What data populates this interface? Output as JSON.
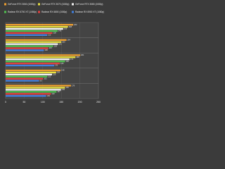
{
  "chart_data": {
    "type": "bar",
    "orientation": "horizontal",
    "categories": [
      null,
      null,
      null,
      null,
      null
    ],
    "series": [
      {
        "name": "GeForce RTX 3060 (1080p)",
        "color": "#f0a030",
        "values": [
          182,
          164,
          201,
          148,
          176
        ]
      },
      {
        "name": "GeForce RTX 3070 (1080p)",
        "color": "#e8e040",
        "values": [
          168,
          150,
          188,
          136,
          160
        ]
      },
      {
        "name": "GeForce RTX 3080 (1080p)",
        "color": "#f4f4f4",
        "values": [
          155,
          141,
          172,
          125,
          149
        ]
      },
      {
        "name": "Radeon RX 6700 XT (1080p)",
        "color": "#50c050",
        "values": [
          140,
          128,
          160,
          112,
          137
        ]
      },
      {
        "name": "Radeon RX 6800 (1080p)",
        "color": "#e04040",
        "values": [
          126,
          115,
          146,
          101,
          122
        ]
      },
      {
        "name": "Radeon RX 6900 XT (1080p)",
        "color": "#4080e0",
        "values": [
          112,
          103,
          131,
          90,
          109
        ]
      }
    ],
    "xlim": [
      0,
      250
    ],
    "xticks": [
      0,
      50,
      100,
      150,
      200,
      250
    ],
    "grid": true
  }
}
